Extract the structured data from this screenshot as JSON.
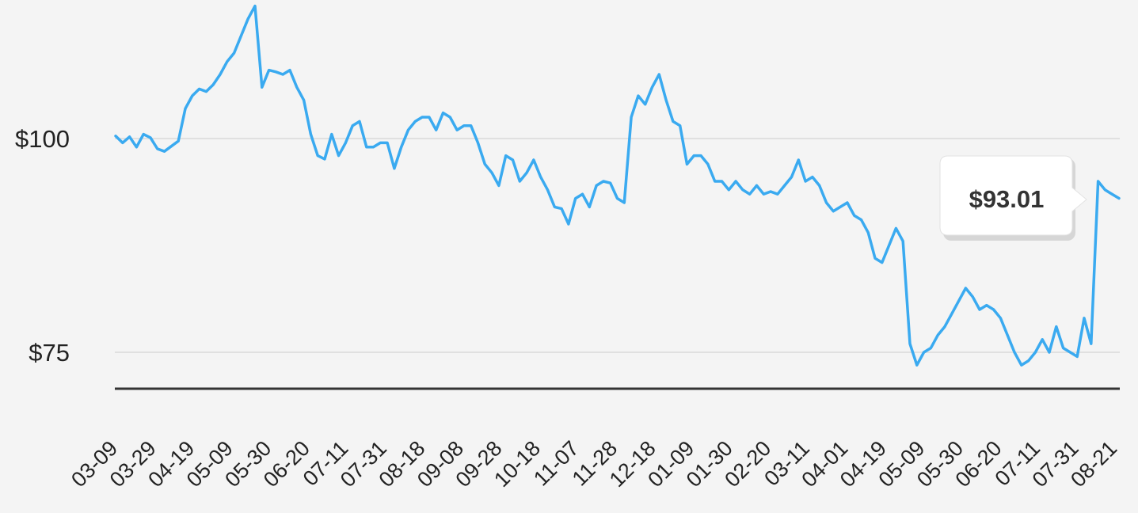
{
  "chart_data": {
    "type": "line",
    "title": "",
    "xlabel": "",
    "ylabel": "",
    "ylim": [
      70.5,
      116.5
    ],
    "grid": true,
    "y_ticks": [
      "$100",
      "$75"
    ],
    "y_tick_values": [
      100,
      75
    ],
    "x_ticks": [
      "03-09",
      "03-29",
      "04-19",
      "05-09",
      "05-30",
      "06-20",
      "07-11",
      "07-31",
      "08-18",
      "09-08",
      "09-28",
      "10-18",
      "11-07",
      "11-28",
      "12-18",
      "01-09",
      "01-30",
      "02-20",
      "03-11",
      "04-01",
      "04-19",
      "05-09",
      "05-30",
      "06-20",
      "07-11",
      "07-31",
      "08-21"
    ],
    "line_color": "#3aaaf0",
    "series": [
      {
        "values": [
          100.3,
          99.5,
          100.2,
          99.0,
          100.5,
          100.1,
          98.8,
          98.5,
          99.1,
          99.7,
          103.5,
          105.0,
          105.8,
          105.5,
          106.3,
          107.5,
          109.0,
          110.0,
          112.0,
          114.0,
          115.5,
          106.0,
          108.0,
          107.8,
          107.5,
          108.0,
          106.0,
          104.5,
          100.5,
          98.0,
          97.6,
          100.5,
          98.0,
          99.5,
          101.5,
          102.0,
          99.0,
          99.0,
          99.5,
          99.5,
          96.5,
          99.0,
          101.0,
          102.0,
          102.5,
          102.5,
          101.0,
          103.0,
          102.5,
          101.0,
          101.5,
          101.5,
          99.5,
          97.0,
          96.0,
          94.5,
          98.0,
          97.5,
          95.0,
          96.0,
          97.5,
          95.5,
          94.0,
          92.0,
          91.8,
          90.0,
          93.0,
          93.5,
          92.0,
          94.5,
          95.0,
          94.8,
          93.0,
          92.5,
          102.5,
          105.0,
          104.0,
          106.0,
          107.5,
          104.5,
          102.0,
          101.5,
          97.0,
          98.0,
          98.0,
          97.0,
          95.0,
          95.0,
          94.0,
          95.0,
          94.0,
          93.5,
          94.5,
          93.5,
          93.8,
          93.5,
          94.5,
          95.5,
          97.5,
          95.0,
          95.5,
          94.5,
          92.5,
          91.5,
          92.0,
          92.5,
          91.0,
          90.5,
          89.0,
          86.0,
          85.5,
          87.5,
          89.5,
          88.0,
          76.0,
          73.5,
          75.0,
          75.5,
          77.0,
          78.0,
          79.5,
          81.0,
          82.5,
          81.5,
          80.0,
          80.5,
          80.0,
          79.0,
          77.0,
          75.0,
          73.5,
          74.0,
          75.0,
          76.5,
          75.0,
          78.0,
          75.5,
          75.0,
          74.5,
          79.0,
          76.0,
          95.0,
          94.0,
          93.5,
          93.01
        ]
      }
    ]
  },
  "tooltip": {
    "value": "$93.01"
  }
}
